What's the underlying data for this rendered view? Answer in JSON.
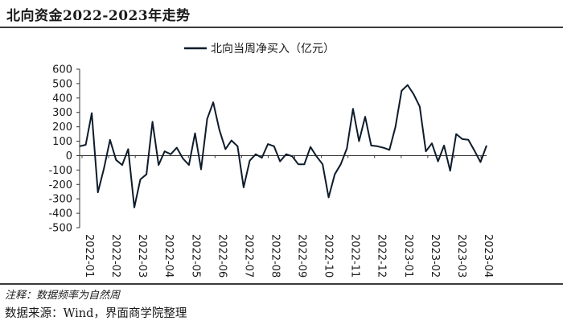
{
  "header": {
    "title": "北向资金2022-2023年走势"
  },
  "footer": {
    "note": "注释：数据频率为自然周",
    "source": "数据来源：Wind，界面商学院整理"
  },
  "colors": {
    "line": "#0d1b2a",
    "axis": "#333333",
    "text": "#1a1a1a"
  },
  "chart_data": {
    "type": "line",
    "title": "",
    "xlabel": "",
    "ylabel": "",
    "ylim": [
      -500,
      600
    ],
    "yticks": [
      600,
      500,
      400,
      300,
      200,
      100,
      0,
      -100,
      -200,
      -300,
      -400,
      -500
    ],
    "legend_position": "top-center",
    "grid": false,
    "x_tick_labels": [
      "2022-01",
      "2022-02",
      "2022-03",
      "2022-04",
      "2022-05",
      "2022-06",
      "2022-07",
      "2022-08",
      "2022-09",
      "2022-10",
      "2022-11",
      "2022-12",
      "2023-01",
      "2023-02",
      "2023-03",
      "2023-04"
    ],
    "series": [
      {
        "name": "北向当周净买入（亿元）",
        "values": [
          65,
          75,
          295,
          -255,
          -90,
          110,
          -30,
          -65,
          45,
          -360,
          -165,
          -130,
          235,
          -65,
          30,
          10,
          55,
          -20,
          -65,
          155,
          -95,
          255,
          370,
          180,
          45,
          105,
          65,
          -220,
          -35,
          10,
          -15,
          80,
          65,
          -40,
          10,
          -5,
          -60,
          -60,
          60,
          -5,
          -60,
          -290,
          -130,
          -60,
          50,
          325,
          100,
          270,
          70,
          65,
          55,
          40,
          200,
          450,
          490,
          425,
          340,
          30,
          85,
          -40,
          70,
          -105,
          150,
          115,
          110,
          35,
          -45,
          70
        ]
      }
    ]
  }
}
